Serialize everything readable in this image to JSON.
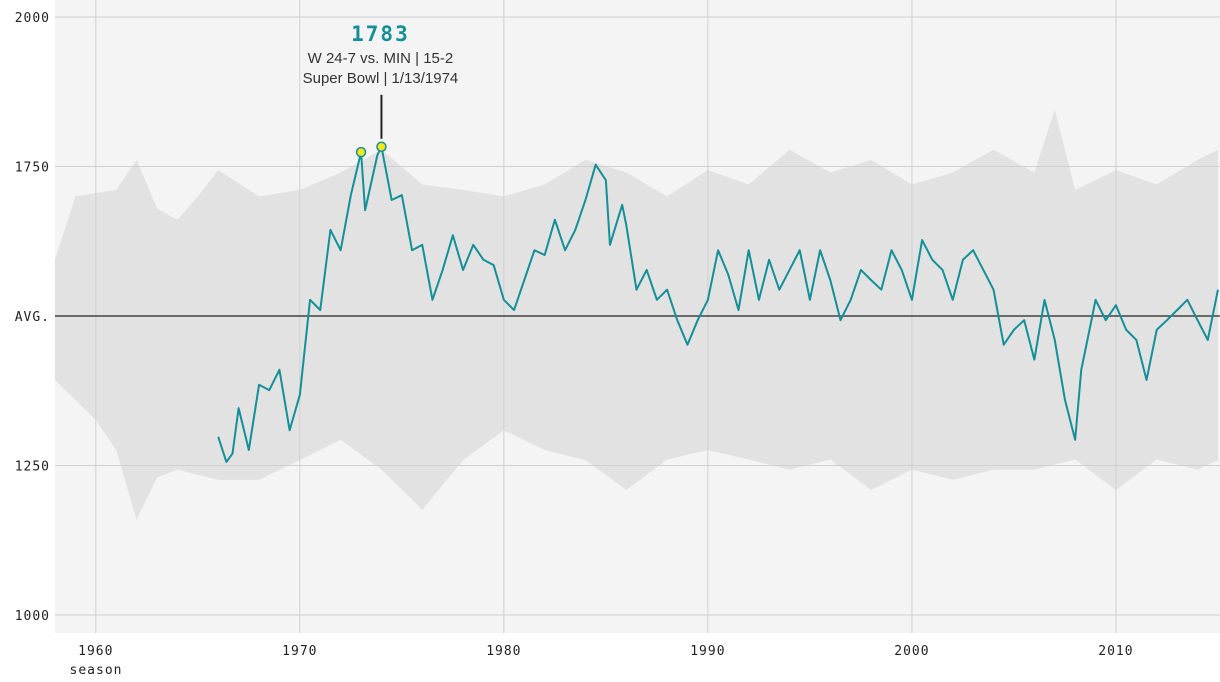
{
  "chart_data": {
    "type": "line",
    "xlabel": "season",
    "ylabel": "",
    "xlim": [
      1958,
      2015.1
    ],
    "ylim": [
      1000,
      2000
    ],
    "grid": true,
    "x_ticks": [
      1960,
      1970,
      1980,
      1990,
      2000,
      2010
    ],
    "y_ticks": [
      {
        "value": 2000,
        "label": "2000"
      },
      {
        "value": 1750,
        "label": "1750"
      },
      {
        "value": 1500,
        "label": "AVG."
      },
      {
        "value": 1250,
        "label": "1250"
      },
      {
        "value": 1000,
        "label": "1000"
      }
    ],
    "colors": {
      "line": "#138f98",
      "band": "#e2e2e2",
      "background": "#f4f4f4",
      "highlight": "#f5e71a",
      "avg_line": "#222222"
    },
    "band_upper": [
      [
        1958,
        1594
      ],
      [
        1959,
        1700
      ],
      [
        1961,
        1711
      ],
      [
        1962,
        1761
      ],
      [
        1963,
        1680
      ],
      [
        1964,
        1661
      ],
      [
        1965,
        1700
      ],
      [
        1966,
        1744
      ],
      [
        1968,
        1700
      ],
      [
        1970,
        1711
      ],
      [
        1972,
        1740
      ],
      [
        1974,
        1778
      ],
      [
        1976,
        1720
      ],
      [
        1978,
        1711
      ],
      [
        1980,
        1700
      ],
      [
        1982,
        1720
      ],
      [
        1984,
        1761
      ],
      [
        1986,
        1740
      ],
      [
        1988,
        1700
      ],
      [
        1990,
        1744
      ],
      [
        1992,
        1720
      ],
      [
        1994,
        1778
      ],
      [
        1996,
        1740
      ],
      [
        1998,
        1761
      ],
      [
        2000,
        1720
      ],
      [
        2002,
        1740
      ],
      [
        2004,
        1778
      ],
      [
        2006,
        1740
      ],
      [
        2007,
        1845
      ],
      [
        2008,
        1711
      ],
      [
        2010,
        1744
      ],
      [
        2012,
        1720
      ],
      [
        2014,
        1761
      ],
      [
        2015,
        1778
      ]
    ],
    "band_lower": [
      [
        1958,
        1393
      ],
      [
        1960,
        1326
      ],
      [
        1961,
        1276
      ],
      [
        1962,
        1159
      ],
      [
        1963,
        1230
      ],
      [
        1964,
        1243
      ],
      [
        1966,
        1226
      ],
      [
        1968,
        1226
      ],
      [
        1970,
        1259
      ],
      [
        1972,
        1293
      ],
      [
        1974,
        1243
      ],
      [
        1976,
        1176
      ],
      [
        1978,
        1259
      ],
      [
        1980,
        1309
      ],
      [
        1982,
        1276
      ],
      [
        1984,
        1259
      ],
      [
        1986,
        1209
      ],
      [
        1988,
        1260
      ],
      [
        1990,
        1276
      ],
      [
        1992,
        1260
      ],
      [
        1994,
        1243
      ],
      [
        1996,
        1260
      ],
      [
        1998,
        1209
      ],
      [
        2000,
        1243
      ],
      [
        2002,
        1226
      ],
      [
        2004,
        1243
      ],
      [
        2006,
        1243
      ],
      [
        2008,
        1260
      ],
      [
        2010,
        1209
      ],
      [
        2012,
        1260
      ],
      [
        2014,
        1243
      ],
      [
        2015,
        1259
      ]
    ],
    "series": [
      {
        "values": [
          [
            1966,
            1298
          ],
          [
            1966.4,
            1256
          ],
          [
            1966.7,
            1270
          ],
          [
            1967,
            1346
          ],
          [
            1967.5,
            1276
          ],
          [
            1968,
            1385
          ],
          [
            1968.5,
            1376
          ],
          [
            1969,
            1410
          ],
          [
            1969.5,
            1309
          ],
          [
            1970,
            1368
          ],
          [
            1970.5,
            1527
          ],
          [
            1971,
            1510
          ],
          [
            1971.5,
            1644
          ],
          [
            1972,
            1610
          ],
          [
            1972.5,
            1702
          ],
          [
            1973,
            1774
          ],
          [
            1973.2,
            1677
          ],
          [
            1973.8,
            1769
          ],
          [
            1974,
            1783
          ],
          [
            1974.5,
            1694
          ],
          [
            1975,
            1702
          ],
          [
            1975.5,
            1610
          ],
          [
            1976,
            1619
          ],
          [
            1976.5,
            1527
          ],
          [
            1977,
            1577
          ],
          [
            1977.5,
            1635
          ],
          [
            1978,
            1577
          ],
          [
            1978.5,
            1619
          ],
          [
            1979,
            1594
          ],
          [
            1979.5,
            1585
          ],
          [
            1980,
            1527
          ],
          [
            1980.5,
            1510
          ],
          [
            1981,
            1560
          ],
          [
            1981.5,
            1610
          ],
          [
            1982,
            1602
          ],
          [
            1982.5,
            1661
          ],
          [
            1983,
            1610
          ],
          [
            1983.5,
            1644
          ],
          [
            1984,
            1694
          ],
          [
            1984.5,
            1753
          ],
          [
            1985,
            1727
          ],
          [
            1985.2,
            1619
          ],
          [
            1985.8,
            1686
          ],
          [
            1986,
            1652
          ],
          [
            1986.5,
            1544
          ],
          [
            1987,
            1577
          ],
          [
            1987.5,
            1527
          ],
          [
            1988,
            1544
          ],
          [
            1988.5,
            1493
          ],
          [
            1989,
            1452
          ],
          [
            1989.5,
            1493
          ],
          [
            1990,
            1527
          ],
          [
            1990.5,
            1610
          ],
          [
            1991,
            1569
          ],
          [
            1991.5,
            1510
          ],
          [
            1992,
            1610
          ],
          [
            1992.5,
            1527
          ],
          [
            1993,
            1594
          ],
          [
            1993.5,
            1544
          ],
          [
            1994,
            1577
          ],
          [
            1994.5,
            1610
          ],
          [
            1995,
            1527
          ],
          [
            1995.5,
            1610
          ],
          [
            1996,
            1560
          ],
          [
            1996.5,
            1493
          ],
          [
            1997,
            1527
          ],
          [
            1997.5,
            1577
          ],
          [
            1998,
            1560
          ],
          [
            1998.5,
            1544
          ],
          [
            1999,
            1610
          ],
          [
            1999.5,
            1577
          ],
          [
            2000,
            1527
          ],
          [
            2000.5,
            1627
          ],
          [
            2001,
            1594
          ],
          [
            2001.5,
            1577
          ],
          [
            2002,
            1527
          ],
          [
            2002.5,
            1594
          ],
          [
            2003,
            1610
          ],
          [
            2003.5,
            1577
          ],
          [
            2004,
            1544
          ],
          [
            2004.5,
            1452
          ],
          [
            2005,
            1477
          ],
          [
            2005.5,
            1493
          ],
          [
            2006,
            1427
          ],
          [
            2006.5,
            1527
          ],
          [
            2007,
            1460
          ],
          [
            2007.5,
            1360
          ],
          [
            2008,
            1293
          ],
          [
            2008.3,
            1410
          ],
          [
            2008.8,
            1493
          ],
          [
            2009,
            1527
          ],
          [
            2009.5,
            1493
          ],
          [
            2010,
            1518
          ],
          [
            2010.5,
            1477
          ],
          [
            2011,
            1460
          ],
          [
            2011.5,
            1393
          ],
          [
            2012,
            1477
          ],
          [
            2012.5,
            1493
          ],
          [
            2013,
            1510
          ],
          [
            2013.5,
            1527
          ],
          [
            2014,
            1493
          ],
          [
            2014.5,
            1460
          ],
          [
            2015,
            1544
          ]
        ]
      }
    ],
    "highlight_points": [
      [
        1973,
        1774
      ],
      [
        1974,
        1783
      ]
    ],
    "annotation": {
      "value": "1783",
      "line1": "W 24-7 vs. MIN | 15-2",
      "line2": "Super Bowl | 1/13/1974",
      "x": 1974,
      "y": 1783
    }
  }
}
